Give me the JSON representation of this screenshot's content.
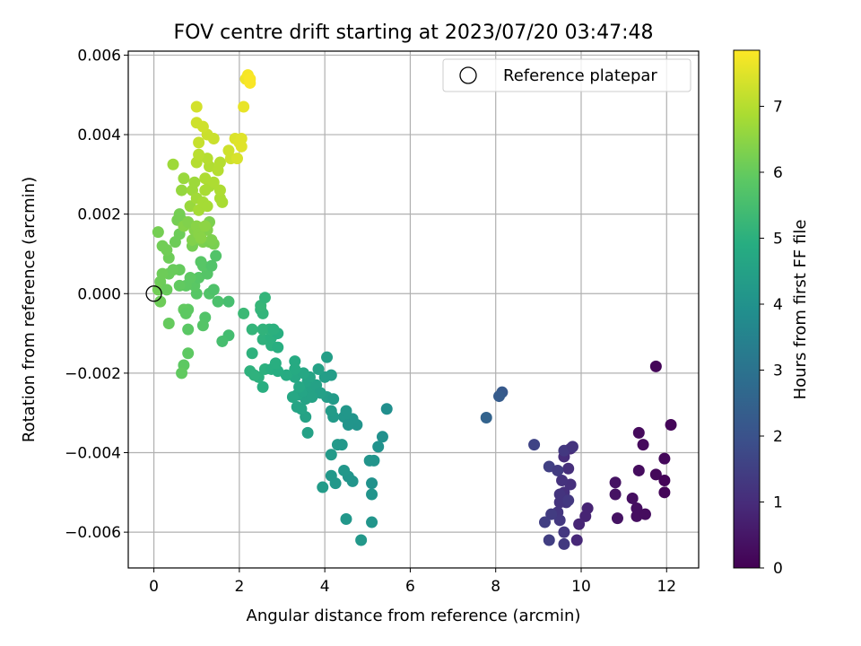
{
  "chart_data": {
    "type": "scatter",
    "title": "FOV centre drift starting at 2023/07/20 03:47:48",
    "xlabel": "Angular distance from reference (arcmin)",
    "ylabel": "Rotation from reference (arcmin)",
    "xlim": [
      -0.6,
      12.75
    ],
    "ylim": [
      -0.0069,
      0.0061
    ],
    "xticks": [
      0,
      2,
      4,
      6,
      8,
      10,
      12
    ],
    "xtick_labels": [
      "0",
      "2",
      "4",
      "6",
      "8",
      "10",
      "12"
    ],
    "yticks": [
      -0.006,
      -0.004,
      -0.002,
      0.0,
      0.002,
      0.004,
      0.006
    ],
    "ytick_labels": [
      "−0.006",
      "−0.004",
      "−0.002",
      "0.000",
      "0.002",
      "0.004",
      "0.006"
    ],
    "grid": true,
    "legend": {
      "placement": "upper right",
      "label": "Reference platepar"
    },
    "colormap": "viridis",
    "colorbar": {
      "label": "Hours from first FF file",
      "range": [
        0,
        7.85
      ],
      "ticks": [
        0,
        1,
        2,
        3,
        4,
        5,
        6,
        7
      ],
      "tick_labels": [
        "0",
        "1",
        "2",
        "3",
        "4",
        "5",
        "6",
        "7"
      ]
    },
    "reference_point": {
      "x": 0.0,
      "y": 0.0
    },
    "points": [
      {
        "x": 11.75,
        "y": -0.00183,
        "t": 0.1
      },
      {
        "x": 12.1,
        "y": -0.0033,
        "t": 0.1
      },
      {
        "x": 11.95,
        "y": -0.00415,
        "t": 0.15
      },
      {
        "x": 11.35,
        "y": -0.0035,
        "t": 0.2
      },
      {
        "x": 11.45,
        "y": -0.0038,
        "t": 0.2
      },
      {
        "x": 11.75,
        "y": -0.00455,
        "t": 0.15
      },
      {
        "x": 11.95,
        "y": -0.0047,
        "t": 0.1
      },
      {
        "x": 11.95,
        "y": -0.005,
        "t": 0.1
      },
      {
        "x": 11.35,
        "y": -0.00445,
        "t": 0.25
      },
      {
        "x": 11.2,
        "y": -0.00515,
        "t": 0.3
      },
      {
        "x": 11.3,
        "y": -0.0054,
        "t": 0.3
      },
      {
        "x": 11.3,
        "y": -0.0056,
        "t": 0.3
      },
      {
        "x": 11.5,
        "y": -0.00555,
        "t": 0.25
      },
      {
        "x": 10.8,
        "y": -0.00475,
        "t": 0.4
      },
      {
        "x": 10.8,
        "y": -0.00505,
        "t": 0.4
      },
      {
        "x": 10.85,
        "y": -0.00565,
        "t": 0.4
      },
      {
        "x": 10.15,
        "y": -0.0054,
        "t": 0.8
      },
      {
        "x": 10.1,
        "y": -0.0056,
        "t": 0.8
      },
      {
        "x": 9.95,
        "y": -0.0058,
        "t": 0.85
      },
      {
        "x": 9.9,
        "y": -0.0062,
        "t": 0.9
      },
      {
        "x": 9.75,
        "y": -0.0039,
        "t": 1.0
      },
      {
        "x": 9.6,
        "y": -0.0041,
        "t": 1.0
      },
      {
        "x": 9.7,
        "y": -0.0044,
        "t": 1.05
      },
      {
        "x": 9.75,
        "y": -0.0048,
        "t": 1.1
      },
      {
        "x": 9.6,
        "y": -0.005,
        "t": 1.1
      },
      {
        "x": 9.55,
        "y": -0.0047,
        "t": 1.15
      },
      {
        "x": 9.5,
        "y": -0.00505,
        "t": 1.2
      },
      {
        "x": 9.65,
        "y": -0.00525,
        "t": 1.2
      },
      {
        "x": 9.5,
        "y": -0.00525,
        "t": 1.2
      },
      {
        "x": 9.45,
        "y": -0.0055,
        "t": 1.25
      },
      {
        "x": 9.5,
        "y": -0.0057,
        "t": 1.3
      },
      {
        "x": 9.6,
        "y": -0.006,
        "t": 1.3
      },
      {
        "x": 9.6,
        "y": -0.0063,
        "t": 1.35
      },
      {
        "x": 9.3,
        "y": -0.00555,
        "t": 1.4
      },
      {
        "x": 9.15,
        "y": -0.00575,
        "t": 1.45
      },
      {
        "x": 9.25,
        "y": -0.0062,
        "t": 1.45
      },
      {
        "x": 9.25,
        "y": -0.00435,
        "t": 1.5
      },
      {
        "x": 9.45,
        "y": -0.00445,
        "t": 1.4
      },
      {
        "x": 9.6,
        "y": -0.00395,
        "t": 1.3
      },
      {
        "x": 9.8,
        "y": -0.00385,
        "t": 1.2
      },
      {
        "x": 8.9,
        "y": -0.0038,
        "t": 1.6
      },
      {
        "x": 9.7,
        "y": -0.0052,
        "t": 1.3
      },
      {
        "x": 8.15,
        "y": -0.00248,
        "t": 2.2
      },
      {
        "x": 8.08,
        "y": -0.00258,
        "t": 2.3
      },
      {
        "x": 7.78,
        "y": -0.00312,
        "t": 2.5
      },
      {
        "x": 4.85,
        "y": -0.0062,
        "t": 4.2
      },
      {
        "x": 5.1,
        "y": -0.00575,
        "t": 4.1
      },
      {
        "x": 4.5,
        "y": -0.00567,
        "t": 4.15
      },
      {
        "x": 5.1,
        "y": -0.00505,
        "t": 4.05
      },
      {
        "x": 5.1,
        "y": -0.00477,
        "t": 4.0
      },
      {
        "x": 3.95,
        "y": -0.00487,
        "t": 4.3
      },
      {
        "x": 4.65,
        "y": -0.00472,
        "t": 4.1
      },
      {
        "x": 4.55,
        "y": -0.0046,
        "t": 4.1
      },
      {
        "x": 4.25,
        "y": -0.00477,
        "t": 4.2
      },
      {
        "x": 4.15,
        "y": -0.00458,
        "t": 4.2
      },
      {
        "x": 4.45,
        "y": -0.00445,
        "t": 4.15
      },
      {
        "x": 5.15,
        "y": -0.0042,
        "t": 4.05
      },
      {
        "x": 5.05,
        "y": -0.0042,
        "t": 4.05
      },
      {
        "x": 4.15,
        "y": -0.00405,
        "t": 4.25
      },
      {
        "x": 4.3,
        "y": -0.0038,
        "t": 4.25
      },
      {
        "x": 4.4,
        "y": -0.0038,
        "t": 4.2
      },
      {
        "x": 5.25,
        "y": -0.00385,
        "t": 4.0
      },
      {
        "x": 5.35,
        "y": -0.0036,
        "t": 3.95
      },
      {
        "x": 5.45,
        "y": -0.0029,
        "t": 3.9
      },
      {
        "x": 4.75,
        "y": -0.0033,
        "t": 4.05
      },
      {
        "x": 4.65,
        "y": -0.00315,
        "t": 4.1
      },
      {
        "x": 4.45,
        "y": -0.0031,
        "t": 4.15
      },
      {
        "x": 4.55,
        "y": -0.0033,
        "t": 4.1
      },
      {
        "x": 4.5,
        "y": -0.00295,
        "t": 4.15
      },
      {
        "x": 4.2,
        "y": -0.0031,
        "t": 4.25
      },
      {
        "x": 4.15,
        "y": -0.00295,
        "t": 4.3
      },
      {
        "x": 4.05,
        "y": -0.0026,
        "t": 4.35
      },
      {
        "x": 4.2,
        "y": -0.00265,
        "t": 4.3
      },
      {
        "x": 4.0,
        "y": -0.0021,
        "t": 4.4
      },
      {
        "x": 4.15,
        "y": -0.00205,
        "t": 4.35
      },
      {
        "x": 4.05,
        "y": -0.0016,
        "t": 4.4
      },
      {
        "x": 3.6,
        "y": -0.0035,
        "t": 4.5
      },
      {
        "x": 3.55,
        "y": -0.0031,
        "t": 4.55
      },
      {
        "x": 3.45,
        "y": -0.0029,
        "t": 4.6
      },
      {
        "x": 3.35,
        "y": -0.00285,
        "t": 4.6
      },
      {
        "x": 3.55,
        "y": -0.00265,
        "t": 4.55
      },
      {
        "x": 3.35,
        "y": -0.00255,
        "t": 4.65
      },
      {
        "x": 3.25,
        "y": -0.0026,
        "t": 4.7
      },
      {
        "x": 3.5,
        "y": -0.00245,
        "t": 4.6
      },
      {
        "x": 3.7,
        "y": -0.0024,
        "t": 4.55
      },
      {
        "x": 3.6,
        "y": -0.0022,
        "t": 4.6
      },
      {
        "x": 3.8,
        "y": -0.0023,
        "t": 4.5
      },
      {
        "x": 3.9,
        "y": -0.0025,
        "t": 4.45
      },
      {
        "x": 3.85,
        "y": -0.0019,
        "t": 4.5
      },
      {
        "x": 3.65,
        "y": -0.0021,
        "t": 4.6
      },
      {
        "x": 3.3,
        "y": -0.0021,
        "t": 4.75
      },
      {
        "x": 3.5,
        "y": -0.002,
        "t": 4.7
      },
      {
        "x": 3.3,
        "y": -0.0017,
        "t": 4.8
      },
      {
        "x": 3.3,
        "y": -0.0019,
        "t": 4.8
      },
      {
        "x": 3.1,
        "y": -0.00205,
        "t": 4.85
      },
      {
        "x": 3.4,
        "y": -0.00235,
        "t": 4.7
      },
      {
        "x": 3.7,
        "y": -0.0026,
        "t": 4.55
      },
      {
        "x": 2.55,
        "y": -0.00235,
        "t": 4.95
      },
      {
        "x": 2.45,
        "y": -0.0021,
        "t": 5.0
      },
      {
        "x": 2.25,
        "y": -0.00195,
        "t": 5.05
      },
      {
        "x": 2.35,
        "y": -0.00205,
        "t": 5.05
      },
      {
        "x": 2.6,
        "y": -0.0019,
        "t": 5.0
      },
      {
        "x": 2.75,
        "y": -0.0019,
        "t": 4.95
      },
      {
        "x": 2.85,
        "y": -0.0019,
        "t": 4.95
      },
      {
        "x": 2.9,
        "y": -0.00195,
        "t": 4.9
      },
      {
        "x": 2.85,
        "y": -0.00175,
        "t": 4.95
      },
      {
        "x": 2.3,
        "y": -0.0015,
        "t": 5.05
      },
      {
        "x": 2.75,
        "y": -0.0013,
        "t": 5.0
      },
      {
        "x": 2.9,
        "y": -0.00135,
        "t": 4.95
      },
      {
        "x": 2.55,
        "y": -0.00115,
        "t": 5.05
      },
      {
        "x": 2.75,
        "y": -0.0011,
        "t": 5.0
      },
      {
        "x": 2.9,
        "y": -0.001,
        "t": 4.95
      },
      {
        "x": 2.7,
        "y": -0.0009,
        "t": 5.05
      },
      {
        "x": 2.55,
        "y": -0.0009,
        "t": 5.1
      },
      {
        "x": 2.8,
        "y": -0.0009,
        "t": 5.0
      },
      {
        "x": 2.3,
        "y": -0.0009,
        "t": 5.15
      },
      {
        "x": 2.5,
        "y": -0.0004,
        "t": 5.15
      },
      {
        "x": 2.55,
        "y": -0.0005,
        "t": 5.15
      },
      {
        "x": 2.5,
        "y": -0.0003,
        "t": 5.2
      },
      {
        "x": 2.6,
        "y": -0.0001,
        "t": 5.15
      },
      {
        "x": 2.1,
        "y": -0.0005,
        "t": 5.3
      },
      {
        "x": 1.75,
        "y": -0.00105,
        "t": 5.45
      },
      {
        "x": 1.6,
        "y": -0.0012,
        "t": 5.5
      },
      {
        "x": 1.75,
        "y": -0.0002,
        "t": 5.5
      },
      {
        "x": 1.5,
        "y": -0.0002,
        "t": 5.6
      },
      {
        "x": 1.2,
        "y": -0.0006,
        "t": 5.7
      },
      {
        "x": 1.15,
        "y": -0.0008,
        "t": 5.75
      },
      {
        "x": 0.8,
        "y": -0.0009,
        "t": 5.85
      },
      {
        "x": 0.8,
        "y": -0.0015,
        "t": 5.9
      },
      {
        "x": 0.7,
        "y": -0.0018,
        "t": 5.9
      },
      {
        "x": 0.65,
        "y": -0.002,
        "t": 5.95
      },
      {
        "x": 0.35,
        "y": -0.00075,
        "t": 6.0
      },
      {
        "x": 0.8,
        "y": -0.0004,
        "t": 5.9
      },
      {
        "x": 0.7,
        "y": -0.0004,
        "t": 5.95
      },
      {
        "x": 0.75,
        "y": -0.0005,
        "t": 5.9
      },
      {
        "x": 1.0,
        "y": 0.0,
        "t": 5.8
      },
      {
        "x": 1.3,
        "y": 0.0,
        "t": 5.7
      },
      {
        "x": 1.4,
        "y": 0.0001,
        "t": 5.65
      },
      {
        "x": 0.95,
        "y": 0.0002,
        "t": 5.85
      },
      {
        "x": 0.75,
        "y": 0.0002,
        "t": 5.9
      },
      {
        "x": 0.6,
        "y": 0.0002,
        "t": 5.95
      },
      {
        "x": 1.05,
        "y": 0.0004,
        "t": 5.8
      },
      {
        "x": 0.85,
        "y": 0.0004,
        "t": 5.9
      },
      {
        "x": 1.25,
        "y": 0.0005,
        "t": 5.75
      },
      {
        "x": 1.15,
        "y": 0.0007,
        "t": 5.8
      },
      {
        "x": 1.35,
        "y": 0.0007,
        "t": 5.7
      },
      {
        "x": 1.1,
        "y": 0.0008,
        "t": 5.8
      },
      {
        "x": 1.45,
        "y": 0.00095,
        "t": 5.7
      },
      {
        "x": 0.6,
        "y": 0.0006,
        "t": 6.0
      },
      {
        "x": 0.45,
        "y": 0.0006,
        "t": 6.05
      },
      {
        "x": 0.35,
        "y": 0.0005,
        "t": 6.05
      },
      {
        "x": 0.2,
        "y": 0.0005,
        "t": 6.1
      },
      {
        "x": 0.15,
        "y": 0.0003,
        "t": 6.1
      },
      {
        "x": 0.1,
        "y": 0.0001,
        "t": 6.15
      },
      {
        "x": 0.15,
        "y": -0.0002,
        "t": 6.1
      },
      {
        "x": 0.3,
        "y": 0.0001,
        "t": 6.05
      },
      {
        "x": 0.35,
        "y": 0.0009,
        "t": 6.1
      },
      {
        "x": 0.3,
        "y": 0.0011,
        "t": 6.15
      },
      {
        "x": 0.2,
        "y": 0.0012,
        "t": 6.15
      },
      {
        "x": 0.1,
        "y": 0.00155,
        "t": 6.2
      },
      {
        "x": 0.5,
        "y": 0.0013,
        "t": 6.1
      },
      {
        "x": 0.6,
        "y": 0.0015,
        "t": 6.1
      },
      {
        "x": 0.65,
        "y": 0.00185,
        "t": 6.15
      },
      {
        "x": 0.55,
        "y": 0.00185,
        "t": 6.2
      },
      {
        "x": 0.6,
        "y": 0.002,
        "t": 6.2
      },
      {
        "x": 0.9,
        "y": 0.0012,
        "t": 6.2
      },
      {
        "x": 1.15,
        "y": 0.0013,
        "t": 6.3
      },
      {
        "x": 1.3,
        "y": 0.0013,
        "t": 6.25
      },
      {
        "x": 1.4,
        "y": 0.00125,
        "t": 6.25
      },
      {
        "x": 1.35,
        "y": 0.00135,
        "t": 6.3
      },
      {
        "x": 1.3,
        "y": 0.0018,
        "t": 6.3
      },
      {
        "x": 1.25,
        "y": 0.0016,
        "t": 6.35
      },
      {
        "x": 0.95,
        "y": 0.0016,
        "t": 6.4
      },
      {
        "x": 0.9,
        "y": 0.00135,
        "t": 6.35
      },
      {
        "x": 0.7,
        "y": 0.0017,
        "t": 6.4
      },
      {
        "x": 0.8,
        "y": 0.0018,
        "t": 6.35
      },
      {
        "x": 1.0,
        "y": 0.0017,
        "t": 6.45
      },
      {
        "x": 1.05,
        "y": 0.0015,
        "t": 6.45
      },
      {
        "x": 1.1,
        "y": 0.0014,
        "t": 6.45
      },
      {
        "x": 1.2,
        "y": 0.0017,
        "t": 6.5
      },
      {
        "x": 0.65,
        "y": 0.0026,
        "t": 6.6
      },
      {
        "x": 0.7,
        "y": 0.0029,
        "t": 6.65
      },
      {
        "x": 0.9,
        "y": 0.0026,
        "t": 6.7
      },
      {
        "x": 0.95,
        "y": 0.0028,
        "t": 6.7
      },
      {
        "x": 0.85,
        "y": 0.0022,
        "t": 6.65
      },
      {
        "x": 1.0,
        "y": 0.0024,
        "t": 6.75
      },
      {
        "x": 1.05,
        "y": 0.0021,
        "t": 6.8
      },
      {
        "x": 1.15,
        "y": 0.0023,
        "t": 6.8
      },
      {
        "x": 1.25,
        "y": 0.0022,
        "t": 6.8
      },
      {
        "x": 1.3,
        "y": 0.0027,
        "t": 6.85
      },
      {
        "x": 1.2,
        "y": 0.0029,
        "t": 6.9
      },
      {
        "x": 1.4,
        "y": 0.0028,
        "t": 6.9
      },
      {
        "x": 1.55,
        "y": 0.0024,
        "t": 6.85
      },
      {
        "x": 1.6,
        "y": 0.0023,
        "t": 6.85
      },
      {
        "x": 1.55,
        "y": 0.0026,
        "t": 6.9
      },
      {
        "x": 1.3,
        "y": 0.0032,
        "t": 6.95
      },
      {
        "x": 1.25,
        "y": 0.0034,
        "t": 7.0
      },
      {
        "x": 1.55,
        "y": 0.0033,
        "t": 7.0
      },
      {
        "x": 1.5,
        "y": 0.0031,
        "t": 7.0
      },
      {
        "x": 0.45,
        "y": 0.00325,
        "t": 6.7
      },
      {
        "x": 1.0,
        "y": 0.0033,
        "t": 7.0
      },
      {
        "x": 1.05,
        "y": 0.0035,
        "t": 7.05
      },
      {
        "x": 1.2,
        "y": 0.0026,
        "t": 6.85
      },
      {
        "x": 1.05,
        "y": 0.0038,
        "t": 7.2
      },
      {
        "x": 1.4,
        "y": 0.0039,
        "t": 7.25
      },
      {
        "x": 1.25,
        "y": 0.004,
        "t": 7.25
      },
      {
        "x": 1.15,
        "y": 0.0042,
        "t": 7.3
      },
      {
        "x": 1.0,
        "y": 0.0043,
        "t": 7.3
      },
      {
        "x": 1.0,
        "y": 0.0047,
        "t": 7.35
      },
      {
        "x": 1.8,
        "y": 0.0034,
        "t": 7.3
      },
      {
        "x": 1.75,
        "y": 0.0036,
        "t": 7.3
      },
      {
        "x": 1.95,
        "y": 0.0034,
        "t": 7.4
      },
      {
        "x": 1.9,
        "y": 0.0039,
        "t": 7.45
      },
      {
        "x": 2.0,
        "y": 0.0038,
        "t": 7.5
      },
      {
        "x": 2.05,
        "y": 0.0037,
        "t": 7.5
      },
      {
        "x": 2.05,
        "y": 0.0039,
        "t": 7.5
      },
      {
        "x": 2.1,
        "y": 0.0047,
        "t": 7.6
      },
      {
        "x": 2.15,
        "y": 0.0054,
        "t": 7.7
      },
      {
        "x": 2.2,
        "y": 0.0055,
        "t": 7.75
      },
      {
        "x": 2.25,
        "y": 0.0054,
        "t": 7.8
      },
      {
        "x": 2.25,
        "y": 0.0053,
        "t": 7.8
      }
    ]
  }
}
